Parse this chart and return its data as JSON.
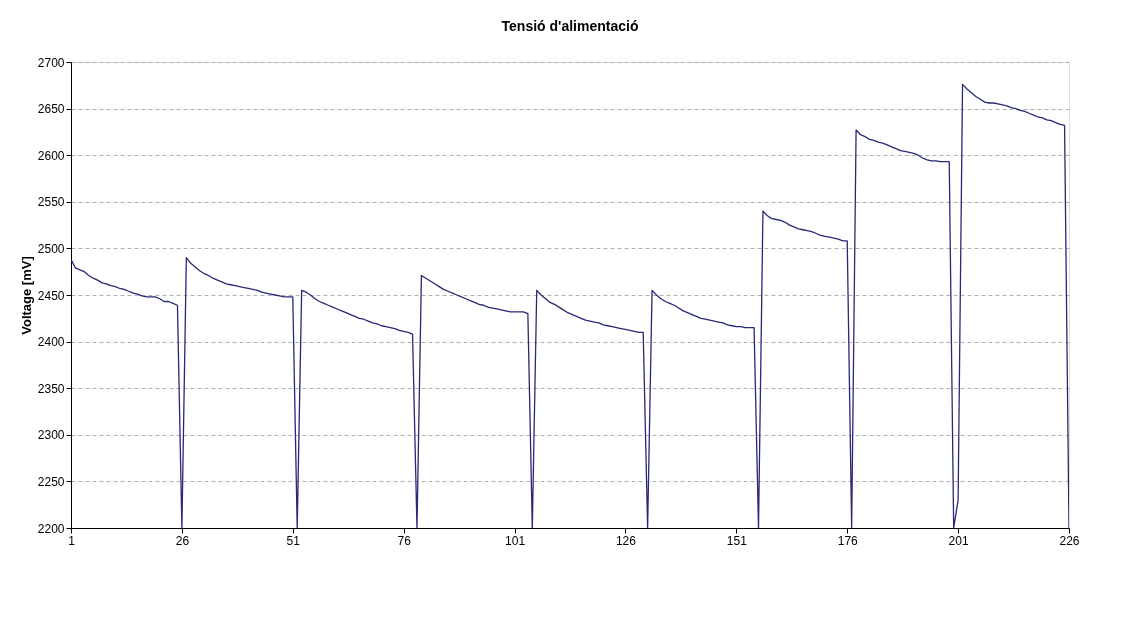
{
  "chart_data": {
    "type": "line",
    "title": "Tensió d'alimentació",
    "ylabel": "Voltage [mV]",
    "x": [
      1,
      2,
      3,
      4,
      5,
      6,
      7,
      8,
      9,
      10,
      11,
      12,
      13,
      14,
      15,
      16,
      17,
      18,
      19,
      20,
      21,
      22,
      23,
      24,
      25,
      26,
      27,
      28,
      29,
      30,
      31,
      32,
      33,
      34,
      35,
      36,
      37,
      38,
      39,
      40,
      41,
      42,
      43,
      44,
      45,
      46,
      47,
      48,
      49,
      50,
      51,
      52,
      53,
      54,
      55,
      56,
      57,
      58,
      59,
      60,
      61,
      62,
      63,
      64,
      65,
      66,
      67,
      68,
      69,
      70,
      71,
      72,
      73,
      74,
      75,
      76,
      77,
      78,
      79,
      80,
      81,
      82,
      83,
      84,
      85,
      86,
      87,
      88,
      89,
      90,
      91,
      92,
      93,
      94,
      95,
      96,
      97,
      98,
      99,
      100,
      101,
      102,
      103,
      104,
      105,
      106,
      107,
      108,
      109,
      110,
      111,
      112,
      113,
      114,
      115,
      116,
      117,
      118,
      119,
      120,
      121,
      122,
      123,
      124,
      125,
      126,
      127,
      128,
      129,
      130,
      131,
      132,
      133,
      134,
      135,
      136,
      137,
      138,
      139,
      140,
      141,
      142,
      143,
      144,
      145,
      146,
      147,
      148,
      149,
      150,
      151,
      152,
      153,
      154,
      155,
      156,
      157,
      158,
      159,
      160,
      161,
      162,
      163,
      164,
      165,
      166,
      167,
      168,
      169,
      170,
      171,
      172,
      173,
      174,
      175,
      176,
      177,
      178,
      179,
      180,
      181,
      182,
      183,
      184,
      185,
      186,
      187,
      188,
      189,
      190,
      191,
      192,
      193,
      194,
      195,
      196,
      197,
      198,
      199,
      200,
      201,
      202,
      203,
      204,
      205,
      206,
      207,
      208,
      209,
      210,
      211,
      212,
      213,
      214,
      215,
      216,
      217,
      218,
      219,
      220,
      221,
      222,
      223,
      224,
      225,
      226
    ],
    "series": [
      {
        "color": "#282878",
        "values": [
          2488,
          2479,
          2477,
          2475,
          2471,
          2468,
          2466,
          2463,
          2462,
          2460,
          2459,
          2457,
          2456,
          2454,
          2452,
          2451,
          2449,
          2448,
          2448,
          2448,
          2446,
          2443,
          2443,
          2441,
          2439,
          2200,
          2490,
          2484,
          2480,
          2476,
          2473,
          2471,
          2468,
          2466,
          2464,
          2462,
          2461,
          2460,
          2459,
          2458,
          2457,
          2456,
          2455,
          2453,
          2452,
          2451,
          2450,
          2449,
          2448,
          2448,
          2448,
          2200,
          2455,
          2453,
          2450,
          2446,
          2443,
          2441,
          2439,
          2437,
          2435,
          2433,
          2431,
          2429,
          2427,
          2425,
          2424,
          2422,
          2420,
          2419,
          2417,
          2416,
          2415,
          2414,
          2412,
          2411,
          2410,
          2408,
          2200,
          2471,
          2468,
          2465,
          2462,
          2459,
          2456,
          2454,
          2452,
          2450,
          2448,
          2446,
          2444,
          2442,
          2440,
          2439,
          2437,
          2436,
          2435,
          2434,
          2433,
          2432,
          2432,
          2432,
          2432,
          2430,
          2200,
          2455,
          2450,
          2446,
          2442,
          2440,
          2437,
          2434,
          2431,
          2429,
          2427,
          2425,
          2423,
          2422,
          2421,
          2420,
          2418,
          2417,
          2416,
          2415,
          2414,
          2413,
          2412,
          2411,
          2410,
          2410,
          2200,
          2455,
          2450,
          2446,
          2443,
          2441,
          2439,
          2436,
          2433,
          2431,
          2429,
          2427,
          2425,
          2424,
          2423,
          2422,
          2421,
          2420,
          2418,
          2417,
          2416,
          2416,
          2415,
          2415,
          2415,
          2200,
          2540,
          2535,
          2532,
          2531,
          2530,
          2528,
          2525,
          2523,
          2521,
          2520,
          2519,
          2518,
          2516,
          2514,
          2513,
          2512,
          2511,
          2510,
          2508,
          2508,
          2200,
          2627,
          2622,
          2620,
          2617,
          2616,
          2614,
          2613,
          2611,
          2609,
          2607,
          2605,
          2604,
          2603,
          2602,
          2600,
          2597,
          2595,
          2594,
          2594,
          2593,
          2593,
          2593,
          2200,
          2230,
          2676,
          2671,
          2667,
          2663,
          2660,
          2657,
          2656,
          2656,
          2655,
          2654,
          2653,
          2651,
          2650,
          2648,
          2647,
          2645,
          2643,
          2641,
          2640,
          2638,
          2637,
          2635,
          2633,
          2632,
          2200
        ]
      }
    ],
    "xlim": [
      1,
      226
    ],
    "xticks": [
      1,
      26,
      51,
      76,
      101,
      126,
      151,
      176,
      201,
      226
    ],
    "ylim": [
      2200,
      2700
    ],
    "yticks": [
      2200,
      2250,
      2300,
      2350,
      2400,
      2450,
      2500,
      2550,
      2600,
      2650,
      2700
    ],
    "grid": "y",
    "marker": "none",
    "line_style": "solid"
  }
}
